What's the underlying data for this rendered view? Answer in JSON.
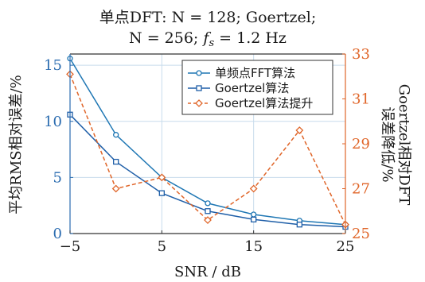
{
  "chart_data": {
    "type": "line",
    "title_line1": "单点DFT: N = 128; Goertzel;",
    "title_line2_prefix": "N = 256; ",
    "title_line2_fs": "f",
    "title_line2_sub": "s",
    "title_line2_suffix": " = 1.2 Hz",
    "xlabel": "SNR / dB",
    "ylabel_left": "平均RMS相对误差/%",
    "ylabel_right_line1": "Goertzel相对DFT",
    "ylabel_right_line2": "误差降低/%",
    "x": [
      -5,
      0,
      5,
      10,
      15,
      20,
      25
    ],
    "xlim": [
      -5,
      25
    ],
    "xticks": [
      -5,
      5,
      15,
      25
    ],
    "xtick_labels": [
      "−5",
      "5",
      "15",
      "25"
    ],
    "ylim_left": [
      0,
      16
    ],
    "yticks_left": [
      0,
      5,
      10,
      15
    ],
    "ylim_right": [
      25,
      33
    ],
    "yticks_right": [
      25,
      27,
      29,
      31,
      33
    ],
    "grid": true,
    "legend_position": "top-right",
    "colors": {
      "series1": "#1f77b4",
      "series2": "#1f5fa8",
      "series3": "#e0662a",
      "left_axis_ticks": "#2b6cb0",
      "right_axis_ticks": "#e0662a",
      "grid": "#c8dcec"
    },
    "series": [
      {
        "name": "单频点FFT算法",
        "axis": "left",
        "marker": "circle",
        "values": [
          15.6,
          8.8,
          5.0,
          2.7,
          1.7,
          1.15,
          0.8
        ]
      },
      {
        "name": "Goertzel算法",
        "axis": "left",
        "marker": "square",
        "values": [
          10.6,
          6.4,
          3.6,
          2.0,
          1.25,
          0.8,
          0.6
        ]
      },
      {
        "name": "Goertzel算法提升",
        "axis": "right",
        "marker": "diamond",
        "dashed": true,
        "values": [
          32.1,
          27.0,
          27.5,
          25.6,
          27.0,
          29.6,
          25.4
        ]
      }
    ]
  }
}
